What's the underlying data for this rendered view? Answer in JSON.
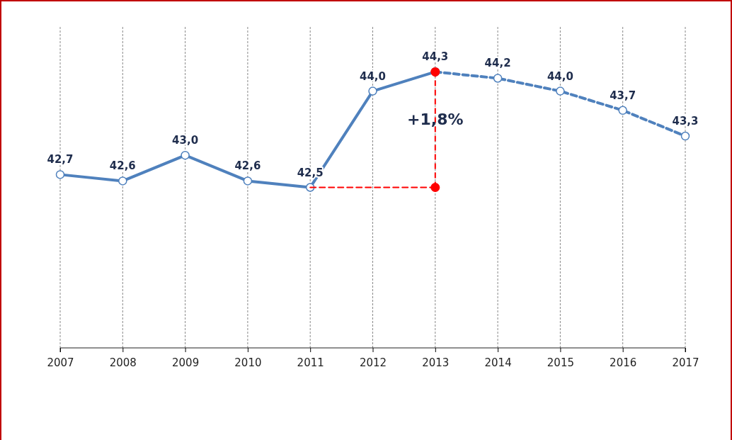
{
  "chart_data": {
    "type": "line",
    "categories": [
      "2007",
      "2008",
      "2009",
      "2010",
      "2011",
      "2012",
      "2013",
      "2014",
      "2015",
      "2016",
      "2017"
    ],
    "ylim": [
      40,
      45
    ],
    "grid": "x",
    "marker": "circle",
    "tick_labels": "x",
    "series": [
      {
        "color": "#4f81bd",
        "line_style": "solid",
        "values": [
          42.7,
          42.6,
          43.0,
          42.6,
          42.5,
          44.0,
          44.3,
          null,
          null,
          null,
          null
        ],
        "value_labels": [
          "42,7",
          "42,6",
          "43,0",
          "42,6",
          "42,5",
          "44,0",
          "44,3",
          null,
          null,
          null,
          null
        ]
      },
      {
        "color": "#4f81bd",
        "line_style": "dashed",
        "values": [
          null,
          null,
          null,
          null,
          null,
          null,
          44.3,
          44.2,
          44.0,
          43.7,
          43.3
        ],
        "value_labels": [
          null,
          null,
          null,
          null,
          null,
          null,
          null,
          "44,2",
          "44,0",
          "43,7",
          "43,3"
        ]
      },
      {
        "color": "#ff0000",
        "line_style": "dashed",
        "marker": "none",
        "values": [
          null,
          null,
          null,
          null,
          42.5,
          42.5,
          42.5,
          null,
          null,
          null,
          null
        ]
      },
      {
        "type": "scatter",
        "color": "#ff0000",
        "values": [
          null,
          null,
          null,
          null,
          null,
          null,
          42.5,
          null,
          null,
          null,
          null
        ]
      },
      {
        "type": "scatter",
        "color": "#ff0000",
        "values": [
          null,
          null,
          null,
          null,
          null,
          null,
          44.3,
          null,
          null,
          null,
          null
        ]
      }
    ],
    "annotations": [
      "+1,8%"
    ]
  }
}
